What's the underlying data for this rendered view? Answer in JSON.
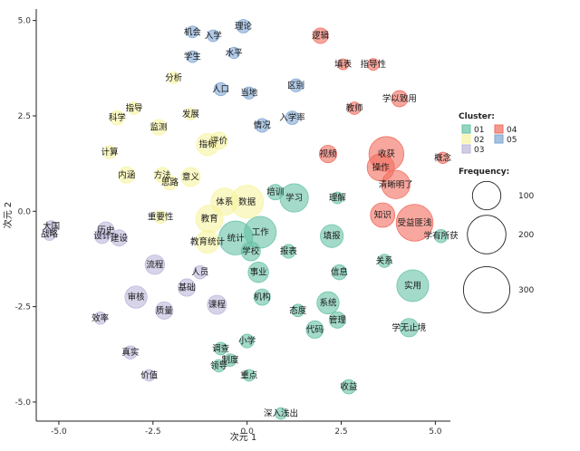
{
  "chart_data": {
    "type": "scatter",
    "xlabel": "次元 1",
    "ylabel": "次元 2",
    "xlim": [
      -5.6,
      5.4
    ],
    "ylim": [
      -5.5,
      5.3
    ],
    "xticks": [
      -5.0,
      -2.5,
      0.0,
      2.5,
      5.0
    ],
    "yticks": [
      -5.0,
      -2.5,
      0.0,
      2.5,
      5.0
    ],
    "xtick_labels": [
      "-5.0",
      "-2.5",
      "0.0",
      "2.5",
      "5.0"
    ],
    "ytick_labels": [
      "5.0",
      "2.5",
      "0.0",
      "-2.5",
      "-5.0"
    ],
    "clusters": [
      {
        "name": "01",
        "color": "#66c2a5"
      },
      {
        "name": "02",
        "color": "#f7f4a0"
      },
      {
        "name": "03",
        "color": "#bcb6da"
      },
      {
        "name": "04",
        "color": "#f16c5e"
      },
      {
        "name": "05",
        "color": "#7ea7d3"
      }
    ],
    "legend": {
      "cluster_title": "Cluster:",
      "frequency_title": "Frequency:",
      "frequency_values": [
        100,
        200,
        300
      ],
      "frequency_labels": [
        "100",
        "200",
        "300"
      ]
    },
    "points": [
      {
        "word": "逻辑",
        "x": 1.95,
        "y": 4.6,
        "freq": 22,
        "cluster": "04"
      },
      {
        "word": "理论",
        "x": -0.1,
        "y": 4.85,
        "freq": 15,
        "cluster": "05"
      },
      {
        "word": "机会",
        "x": -1.45,
        "y": 4.7,
        "freq": 10,
        "cluster": "05"
      },
      {
        "word": "入学",
        "x": -0.9,
        "y": 4.6,
        "freq": 10,
        "cluster": "05"
      },
      {
        "word": "水平",
        "x": -0.35,
        "y": 4.15,
        "freq": 9,
        "cluster": "05"
      },
      {
        "word": "学生",
        "x": -1.45,
        "y": 4.05,
        "freq": 10,
        "cluster": "05"
      },
      {
        "word": "填表",
        "x": 2.55,
        "y": 3.85,
        "freq": 8,
        "cluster": "04"
      },
      {
        "word": "指导性",
        "x": 3.35,
        "y": 3.85,
        "freq": 10,
        "cluster": "04"
      },
      {
        "word": "分析",
        "x": -1.95,
        "y": 3.5,
        "freq": 10,
        "cluster": "02"
      },
      {
        "word": "区别",
        "x": 1.3,
        "y": 3.3,
        "freq": 14,
        "cluster": "05"
      },
      {
        "word": "人口",
        "x": -0.7,
        "y": 3.2,
        "freq": 14,
        "cluster": "05"
      },
      {
        "word": "当地",
        "x": 0.05,
        "y": 3.1,
        "freq": 11,
        "cluster": "05"
      },
      {
        "word": "学以致用",
        "x": 4.05,
        "y": 2.95,
        "freq": 25,
        "cluster": "04"
      },
      {
        "word": "教师",
        "x": 2.85,
        "y": 2.7,
        "freq": 12,
        "cluster": "04"
      },
      {
        "word": "指导",
        "x": -3.0,
        "y": 2.7,
        "freq": 12,
        "cluster": "02"
      },
      {
        "word": "科学",
        "x": -3.45,
        "y": 2.45,
        "freq": 18,
        "cluster": "02"
      },
      {
        "word": "发展",
        "x": -1.5,
        "y": 2.55,
        "freq": 10,
        "cluster": "02"
      },
      {
        "word": "入学率",
        "x": 1.2,
        "y": 2.45,
        "freq": 15,
        "cluster": "05"
      },
      {
        "word": "情况",
        "x": 0.4,
        "y": 2.25,
        "freq": 16,
        "cluster": "05"
      },
      {
        "word": "监测",
        "x": -2.35,
        "y": 2.2,
        "freq": 22,
        "cluster": "02"
      },
      {
        "word": "评价",
        "x": -0.75,
        "y": 1.85,
        "freq": 30,
        "cluster": "02"
      },
      {
        "word": "指标",
        "x": -1.05,
        "y": 1.75,
        "freq": 55,
        "cluster": "02"
      },
      {
        "word": "收获",
        "x": 3.7,
        "y": 1.5,
        "freq": 160,
        "cluster": "04"
      },
      {
        "word": "概念",
        "x": 5.2,
        "y": 1.4,
        "freq": 9,
        "cluster": "04"
      },
      {
        "word": "视频",
        "x": 2.15,
        "y": 1.5,
        "freq": 30,
        "cluster": "04"
      },
      {
        "word": "计算",
        "x": -3.65,
        "y": 1.55,
        "freq": 14,
        "cluster": "02"
      },
      {
        "word": "操作",
        "x": 3.55,
        "y": 1.15,
        "freq": 90,
        "cluster": "04"
      },
      {
        "word": "内涵",
        "x": -3.2,
        "y": 0.95,
        "freq": 25,
        "cluster": "02"
      },
      {
        "word": "方法",
        "x": -2.25,
        "y": 0.95,
        "freq": 22,
        "cluster": "02"
      },
      {
        "word": "意义",
        "x": -1.5,
        "y": 0.9,
        "freq": 38,
        "cluster": "02"
      },
      {
        "word": "思路",
        "x": -2.05,
        "y": 0.75,
        "freq": 18,
        "cluster": "02"
      },
      {
        "word": "清晰明了",
        "x": 3.95,
        "y": 0.7,
        "freq": 100,
        "cluster": "04"
      },
      {
        "word": "培训",
        "x": 0.75,
        "y": 0.5,
        "freq": 22,
        "cluster": "01"
      },
      {
        "word": "理解",
        "x": 2.4,
        "y": 0.35,
        "freq": 10,
        "cluster": "01"
      },
      {
        "word": "学习",
        "x": 1.25,
        "y": 0.35,
        "freq": 100,
        "cluster": "01"
      },
      {
        "word": "体系",
        "x": -0.6,
        "y": 0.25,
        "freq": 90,
        "cluster": "02"
      },
      {
        "word": "数据",
        "x": 0.0,
        "y": 0.25,
        "freq": 140,
        "cluster": "02"
      },
      {
        "word": "知识",
        "x": 3.6,
        "y": -0.1,
        "freq": 70,
        "cluster": "04"
      },
      {
        "word": "受益匪浅",
        "x": 4.45,
        "y": -0.3,
        "freq": 180,
        "cluster": "04"
      },
      {
        "word": "大国",
        "x": -5.2,
        "y": -0.4,
        "freq": 10,
        "cluster": "03"
      },
      {
        "word": "教育",
        "x": -1.0,
        "y": -0.2,
        "freq": 90,
        "cluster": "02"
      },
      {
        "word": "重要性",
        "x": -2.3,
        "y": -0.15,
        "freq": 12,
        "cluster": "02"
      },
      {
        "word": "工作",
        "x": 0.35,
        "y": -0.55,
        "freq": 130,
        "cluster": "01"
      },
      {
        "word": "历史",
        "x": -3.75,
        "y": -0.5,
        "freq": 28,
        "cluster": "03"
      },
      {
        "word": "统计",
        "x": -0.3,
        "y": -0.7,
        "freq": 150,
        "cluster": "01"
      },
      {
        "word": "战略",
        "x": -5.25,
        "y": -0.6,
        "freq": 12,
        "cluster": "03"
      },
      {
        "word": "设计",
        "x": -3.85,
        "y": -0.65,
        "freq": 20,
        "cluster": "03"
      },
      {
        "word": "建设",
        "x": -3.4,
        "y": -0.7,
        "freq": 25,
        "cluster": "03"
      },
      {
        "word": "填报",
        "x": 2.25,
        "y": -0.65,
        "freq": 60,
        "cluster": "01"
      },
      {
        "word": "学有所获",
        "x": 5.15,
        "y": -0.65,
        "freq": 14,
        "cluster": "01"
      },
      {
        "word": "教育统计",
        "x": -1.05,
        "y": -0.8,
        "freq": 60,
        "cluster": "02"
      },
      {
        "word": "学校",
        "x": 0.1,
        "y": -1.05,
        "freq": 38,
        "cluster": "01"
      },
      {
        "word": "报表",
        "x": 1.1,
        "y": -1.05,
        "freq": 16,
        "cluster": "01"
      },
      {
        "word": "关系",
        "x": 3.65,
        "y": -1.3,
        "freq": 14,
        "cluster": "01"
      },
      {
        "word": "流程",
        "x": -2.45,
        "y": -1.4,
        "freq": 40,
        "cluster": "03"
      },
      {
        "word": "人员",
        "x": -1.25,
        "y": -1.6,
        "freq": 14,
        "cluster": "03"
      },
      {
        "word": "事业",
        "x": 0.3,
        "y": -1.6,
        "freq": 45,
        "cluster": "01"
      },
      {
        "word": "信息",
        "x": 2.45,
        "y": -1.6,
        "freq": 20,
        "cluster": "01"
      },
      {
        "word": "基础",
        "x": -1.6,
        "y": -2.0,
        "freq": 30,
        "cluster": "03"
      },
      {
        "word": "实用",
        "x": 4.4,
        "y": -1.95,
        "freq": 130,
        "cluster": "01"
      },
      {
        "word": "审核",
        "x": -2.95,
        "y": -2.25,
        "freq": 55,
        "cluster": "03"
      },
      {
        "word": "机构",
        "x": 0.4,
        "y": -2.25,
        "freq": 25,
        "cluster": "01"
      },
      {
        "word": "课程",
        "x": -0.8,
        "y": -2.45,
        "freq": 38,
        "cluster": "03"
      },
      {
        "word": "系统",
        "x": 2.15,
        "y": -2.4,
        "freq": 55,
        "cluster": "01"
      },
      {
        "word": "质量",
        "x": -2.2,
        "y": -2.6,
        "freq": 30,
        "cluster": "03"
      },
      {
        "word": "态度",
        "x": 1.35,
        "y": -2.6,
        "freq": 12,
        "cluster": "01"
      },
      {
        "word": "效率",
        "x": -3.9,
        "y": -2.8,
        "freq": 12,
        "cluster": "03"
      },
      {
        "word": "管理",
        "x": 2.4,
        "y": -2.85,
        "freq": 25,
        "cluster": "01"
      },
      {
        "word": "代码",
        "x": 1.8,
        "y": -3.1,
        "freq": 30,
        "cluster": "01"
      },
      {
        "word": "学无止境",
        "x": 4.3,
        "y": -3.05,
        "freq": 35,
        "cluster": "01"
      },
      {
        "word": "小学",
        "x": 0.0,
        "y": -3.4,
        "freq": 16,
        "cluster": "01"
      },
      {
        "word": "调查",
        "x": -0.7,
        "y": -3.6,
        "freq": 12,
        "cluster": "01"
      },
      {
        "word": "真实",
        "x": -3.1,
        "y": -3.7,
        "freq": 14,
        "cluster": "03"
      },
      {
        "word": "制度",
        "x": -0.45,
        "y": -3.9,
        "freq": 12,
        "cluster": "01"
      },
      {
        "word": "领导",
        "x": -0.75,
        "y": -4.05,
        "freq": 12,
        "cluster": "01"
      },
      {
        "word": "价值",
        "x": -2.6,
        "y": -4.3,
        "freq": 10,
        "cluster": "03"
      },
      {
        "word": "重点",
        "x": 0.05,
        "y": -4.3,
        "freq": 10,
        "cluster": "01"
      },
      {
        "word": "收益",
        "x": 2.7,
        "y": -4.6,
        "freq": 18,
        "cluster": "01"
      },
      {
        "word": "深入浅出",
        "x": 0.9,
        "y": -5.3,
        "freq": 10,
        "cluster": "01"
      }
    ]
  }
}
